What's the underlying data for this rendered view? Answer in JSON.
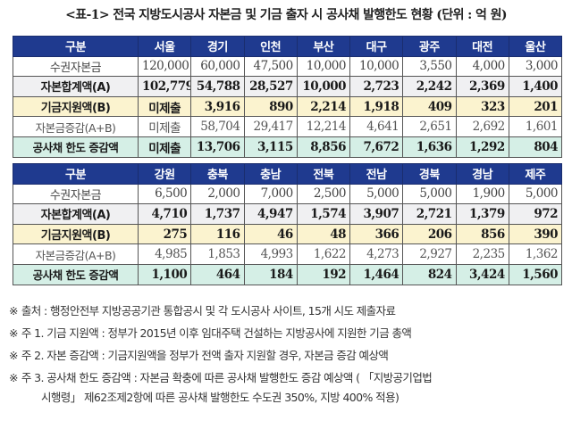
{
  "title": "<표-1> 전국 지방도시공사 자본금 및 기금 출자 시 공사채 발행한도 현황 (단위 : 억 원)",
  "colors": {
    "header_bg": "#1f3a8f",
    "row_capital_total_bg": "#f0f0f2",
    "row_fund_bg": "#fbf3cf",
    "row_bond_limit_bg": "#d5efe6"
  },
  "table1": {
    "header": [
      "구분",
      "서울",
      "경기",
      "인천",
      "부산",
      "대구",
      "광주",
      "대전",
      "울산"
    ],
    "rows": [
      {
        "label": "수권자본금",
        "values": [
          "120,000",
          "60,000",
          "47,500",
          "10,000",
          "10,000",
          "3,550",
          "4,000",
          "3,000"
        ]
      },
      {
        "label": "자본합계액(A)",
        "values": [
          "102,779",
          "54,788",
          "28,527",
          "10,000",
          "2,723",
          "2,242",
          "2,369",
          "1,400"
        ]
      },
      {
        "label": "기금지원액(B)",
        "values": [
          "미제출",
          "3,916",
          "890",
          "2,214",
          "1,918",
          "409",
          "323",
          "201"
        ]
      },
      {
        "label": "자본금증감(A+B)",
        "values": [
          "미제출",
          "58,704",
          "29,417",
          "12,214",
          "4,641",
          "2,651",
          "2,692",
          "1,601"
        ]
      },
      {
        "label": "공사채 한도 증감액",
        "values": [
          "미제출",
          "13,706",
          "3,115",
          "8,856",
          "7,672",
          "1,636",
          "1,292",
          "804"
        ]
      }
    ]
  },
  "table2": {
    "header": [
      "구분",
      "강원",
      "충북",
      "충남",
      "전북",
      "전남",
      "경북",
      "경남",
      "제주"
    ],
    "rows": [
      {
        "label": "수권자본금",
        "values": [
          "6,500",
          "2,000",
          "7,000",
          "2,500",
          "5,000",
          "5,000",
          "1,900",
          "5,000"
        ]
      },
      {
        "label": "자본합계액(A)",
        "values": [
          "4,710",
          "1,737",
          "4,947",
          "1,574",
          "3,907",
          "2,721",
          "1,379",
          "972"
        ]
      },
      {
        "label": "기금지원액(B)",
        "values": [
          "275",
          "116",
          "46",
          "48",
          "366",
          "206",
          "856",
          "390"
        ]
      },
      {
        "label": "자본금증감(A+B)",
        "values": [
          "4,985",
          "1,853",
          "4,993",
          "1,622",
          "4,273",
          "2,927",
          "2,235",
          "1,362"
        ]
      },
      {
        "label": "공사채 한도 증감액",
        "values": [
          "1,100",
          "464",
          "184",
          "192",
          "1,464",
          "824",
          "3,424",
          "1,560"
        ]
      }
    ]
  },
  "notes": [
    {
      "mark": "※",
      "text": "출처 : 행정안전부 지방공공기관 통합공시 및 각 도시공사 사이트, 15개 시도 제출자료"
    },
    {
      "mark": "※",
      "text": "주 1. 기금 지원액 : 정부가 2015년 이후 임대주택 건설하는 지방공사에 지원한 기금 총액"
    },
    {
      "mark": "※",
      "text": "주 2. 자본 증감액 : 기금지원액을 정부가 전액 출자 지원할 경우, 자본금 증감 예상액"
    },
    {
      "mark": "※",
      "text": "주 3. 공사채 한도 증감액 : 자본금 확충에 따른 공사채 발행한도 증감 예상액 ( 「지방공기업법"
    },
    {
      "mark": "",
      "text": "시행령」 제62조제2항에 따른 공사채 발행한도 수도권 350%, 지방 400% 적용)"
    }
  ]
}
